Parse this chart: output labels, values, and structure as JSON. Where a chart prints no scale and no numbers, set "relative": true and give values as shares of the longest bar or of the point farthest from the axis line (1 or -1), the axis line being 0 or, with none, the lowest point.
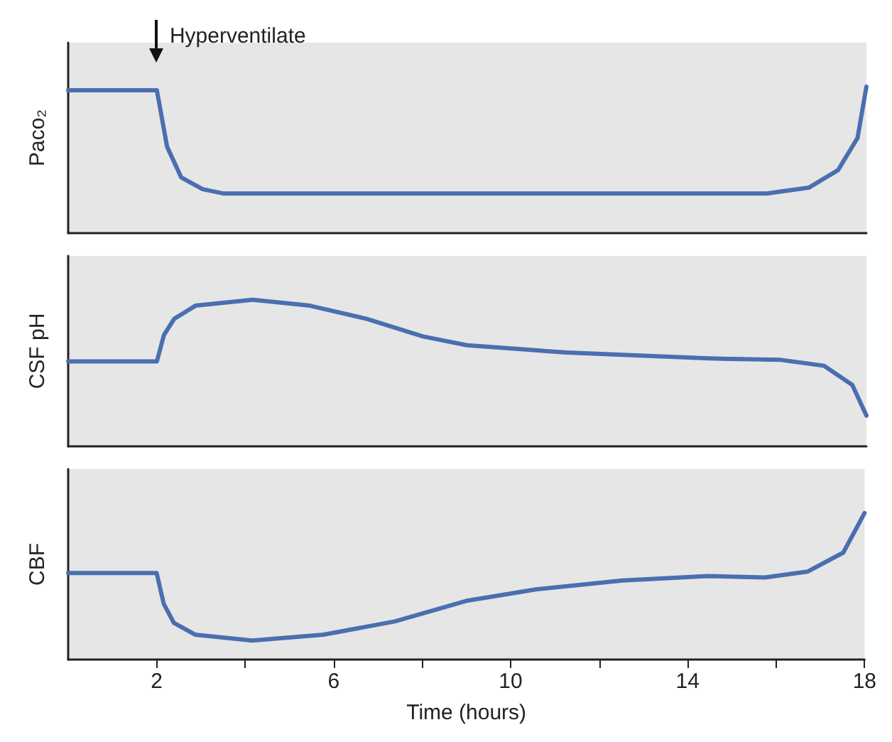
{
  "chart_data": [
    {
      "type": "line",
      "relative": true,
      "ylabel": "Paco₂",
      "color": "#4a6fb0",
      "xlim": [
        0,
        18
      ],
      "tick_labels": false,
      "x": [
        0,
        2,
        2.23,
        2.55,
        3.03,
        3.51,
        15.75,
        16.7,
        17.36,
        17.8,
        18
      ],
      "values": [
        0.975,
        0.975,
        0.59,
        0.38,
        0.3,
        0.27,
        0.27,
        0.31,
        0.43,
        0.65,
        1.0
      ],
      "annotations": [
        {
          "text": "Hyperventilate",
          "x": 2,
          "y": 0.975
        }
      ]
    },
    {
      "type": "line",
      "relative": true,
      "ylabel": "CSF pH",
      "color": "#4a6fb0",
      "xlim": [
        0,
        18
      ],
      "tick_labels": false,
      "x": [
        0,
        2,
        2.16,
        2.39,
        2.87,
        4.16,
        5.45,
        6.73,
        8.0,
        8.99,
        11.24,
        14.46,
        16.07,
        17.04,
        17.68,
        18
      ],
      "values": [
        0.58,
        0.58,
        0.76,
        0.87,
        0.96,
        1.0,
        0.96,
        0.87,
        0.75,
        0.69,
        0.64,
        0.6,
        0.59,
        0.55,
        0.42,
        0.21
      ]
    },
    {
      "type": "line",
      "relative": true,
      "ylabel": "CBF",
      "xlabel": "Time (hours)",
      "color": "#4a6fb0",
      "xlim": [
        0,
        18
      ],
      "tick_labels": "x",
      "xticks": [
        2,
        {
          "value": 4,
          "label": null
        },
        6,
        {
          "value": 8,
          "label": null
        },
        10,
        {
          "value": 12,
          "label": null
        },
        14,
        {
          "value": 16,
          "label": null
        },
        18
      ],
      "x": [
        0,
        2,
        2.16,
        2.39,
        2.87,
        4.16,
        5.77,
        7.38,
        8.99,
        10.6,
        12.53,
        14.46,
        15.75,
        16.71,
        17.52,
        18
      ],
      "values": [
        0.59,
        0.59,
        0.38,
        0.25,
        0.17,
        0.13,
        0.17,
        0.26,
        0.4,
        0.48,
        0.54,
        0.57,
        0.56,
        0.6,
        0.73,
        1.0
      ]
    }
  ]
}
